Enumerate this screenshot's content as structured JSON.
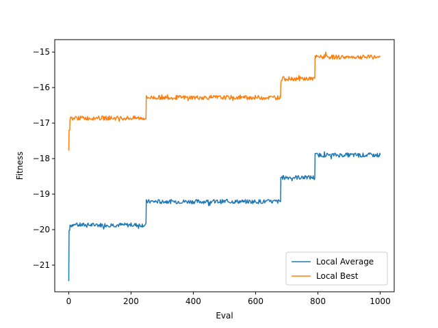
{
  "chart_data": {
    "type": "line",
    "title": "",
    "xlabel": "Eval",
    "ylabel": "Fitness",
    "xlim": [
      -45,
      1045
    ],
    "ylim": [
      -21.75,
      -14.65
    ],
    "xticks": [
      0,
      200,
      400,
      600,
      800,
      1000
    ],
    "yticks": [
      -21,
      -20,
      -19,
      -18,
      -17,
      -16,
      -15
    ],
    "grid": false,
    "legend_position": "lower-right",
    "series": [
      {
        "name": "Local Average",
        "color": "#1f77b4",
        "levels": [
          {
            "start": 0,
            "end": 0,
            "value": -21.45
          },
          {
            "start": 1,
            "end": 3,
            "value": -20.02
          },
          {
            "start": 4,
            "end": 248,
            "value": -19.87
          },
          {
            "start": 249,
            "end": 680,
            "value": -19.21
          },
          {
            "start": 681,
            "end": 790,
            "value": -18.53
          },
          {
            "start": 791,
            "end": 1000,
            "value": -17.9
          }
        ]
      },
      {
        "name": "Local Best",
        "color": "#ff7f0e",
        "levels": [
          {
            "start": 0,
            "end": 0,
            "value": -17.78
          },
          {
            "start": 1,
            "end": 3,
            "value": -17.2
          },
          {
            "start": 4,
            "end": 248,
            "value": -16.86
          },
          {
            "start": 249,
            "end": 680,
            "value": -16.28
          },
          {
            "start": 681,
            "end": 790,
            "value": -15.75
          },
          {
            "start": 791,
            "end": 1000,
            "value": -15.14
          }
        ]
      }
    ]
  }
}
